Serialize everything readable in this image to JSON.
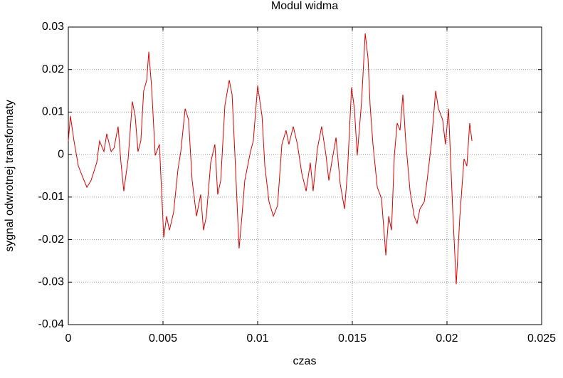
{
  "chart_data": {
    "type": "line",
    "title": "Modul widma",
    "x_label": "czas",
    "y_label": "sygnal odwrotnej transformaty",
    "color": "#e00000",
    "grid": true,
    "xlim": [
      0,
      0.025
    ],
    "xticks": [
      0,
      0.005,
      0.01,
      0.015,
      0.02,
      0.025
    ],
    "ylim": [
      -0.04,
      0.03
    ],
    "yticks": [
      0.03,
      0.02,
      0.01,
      0,
      -0.01,
      -0.02,
      -0.03,
      -0.04
    ],
    "x": [
      0,
      0.00011,
      0.0003,
      0.00053,
      0.00075,
      0.00098,
      0.0012,
      0.0015,
      0.00165,
      0.00188,
      0.00203,
      0.00226,
      0.00241,
      0.00263,
      0.00278,
      0.00293,
      0.00316,
      0.00338,
      0.00353,
      0.00368,
      0.00383,
      0.00398,
      0.00414,
      0.00425,
      0.0044,
      0.00459,
      0.00481,
      0.00504,
      0.00519,
      0.00534,
      0.00556,
      0.00579,
      0.00594,
      0.00617,
      0.00635,
      0.00654,
      0.00677,
      0.00699,
      0.00714,
      0.00729,
      0.00752,
      0.00774,
      0.00789,
      0.00805,
      0.00827,
      0.0085,
      0.00865,
      0.0088,
      0.00902,
      0.00917,
      0.00932,
      0.00947,
      0.00962,
      0.00977,
      0.01,
      0.01023,
      0.01038,
      0.0106,
      0.01083,
      0.01105,
      0.01128,
      0.0115,
      0.01165,
      0.01188,
      0.0121,
      0.01233,
      0.01256,
      0.01278,
      0.01293,
      0.01316,
      0.01338,
      0.01361,
      0.01376,
      0.01391,
      0.01414,
      0.01436,
      0.01459,
      0.01474,
      0.01496,
      0.01511,
      0.01526,
      0.01549,
      0.01568,
      0.01583,
      0.01594,
      0.01609,
      0.01632,
      0.01654,
      0.01677,
      0.01692,
      0.01707,
      0.01722,
      0.01737,
      0.01752,
      0.01767,
      0.01782,
      0.01805,
      0.01827,
      0.01842,
      0.01857,
      0.0188,
      0.01895,
      0.01917,
      0.0194,
      0.01955,
      0.01977,
      0.01992,
      0.02008,
      0.0203,
      0.02049,
      0.02068,
      0.0209,
      0.02105,
      0.0212,
      0.02132
    ],
    "values": [
      0.0032,
      0.0091,
      0.0032,
      -0.0027,
      -0.0052,
      -0.0077,
      -0.0061,
      -0.0019,
      0.0032,
      0.0007,
      0.0049,
      0.0007,
      0.0015,
      0.0066,
      -0.0019,
      -0.0086,
      -0.001,
      0.0125,
      0.0091,
      0.0007,
      0.0032,
      0.015,
      0.0175,
      0.0242,
      0.0158,
      -0.0002,
      0.0024,
      -0.0195,
      -0.0145,
      -0.0178,
      -0.0136,
      -0.0035,
      0.0007,
      0.0108,
      0.0082,
      -0.0061,
      -0.0145,
      -0.0094,
      -0.0178,
      -0.0145,
      -0.0019,
      0.0024,
      -0.0094,
      -0.0061,
      0.0116,
      0.0175,
      0.0141,
      -0.0002,
      -0.0221,
      -0.0145,
      -0.0061,
      -0.0027,
      0.0007,
      0.0032,
      0.0162,
      0.0091,
      -0.0027,
      -0.0111,
      -0.0145,
      -0.012,
      0.0024,
      0.0057,
      0.0024,
      0.0066,
      0.0024,
      -0.0044,
      -0.0086,
      -0.0019,
      -0.0086,
      0.0015,
      0.0066,
      -0.0002,
      -0.0061,
      -0.0019,
      0.004,
      -0.0069,
      -0.0128,
      -0.0044,
      0.0158,
      0.0108,
      -0.0002,
      0.0125,
      0.0285,
      0.0226,
      0.0116,
      0.0024,
      -0.0077,
      -0.0103,
      -0.0237,
      -0.0145,
      -0.0178,
      -0.0002,
      0.0074,
      0.0057,
      0.0141,
      0.0032,
      -0.0086,
      -0.0145,
      -0.0162,
      -0.0128,
      -0.0111,
      -0.0061,
      0.0024,
      0.015,
      0.0108,
      0.0082,
      0.0024,
      0.0108,
      -0.0128,
      -0.0305,
      -0.0145,
      -0.001,
      -0.0027,
      0.0074,
      0.0032
    ]
  }
}
